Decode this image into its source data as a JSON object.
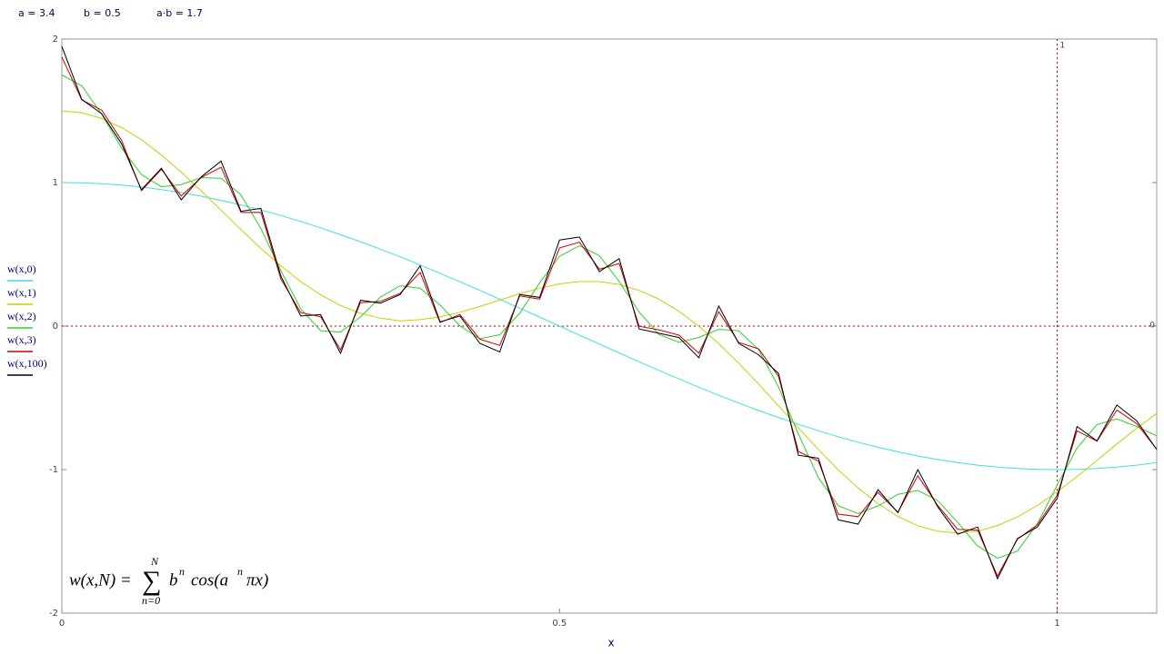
{
  "parameters": [
    "a = 3.4",
    "b = 0.5",
    "a·b = 1.7"
  ],
  "chart_data": {
    "type": "line",
    "x_label": "x",
    "x": [
      0,
      0.02,
      0.04,
      0.06,
      0.08,
      0.1,
      0.12,
      0.14,
      0.16,
      0.18,
      0.2,
      0.22,
      0.24,
      0.26,
      0.28,
      0.3,
      0.32,
      0.34,
      0.36,
      0.38,
      0.4,
      0.42,
      0.44,
      0.46,
      0.48,
      0.5,
      0.52,
      0.54,
      0.56,
      0.58,
      0.6,
      0.62,
      0.64,
      0.66,
      0.68,
      0.7,
      0.72,
      0.74,
      0.76,
      0.78,
      0.8,
      0.82,
      0.84,
      0.86,
      0.88,
      0.9,
      0.92,
      0.94,
      0.96,
      0.98,
      1,
      1.02,
      1.04,
      1.06,
      1.08,
      1.1
    ],
    "series": [
      {
        "name": "w(x,0)",
        "color": "#40dede",
        "values": [
          1,
          0.998,
          0.992,
          0.982,
          0.969,
          0.951,
          0.93,
          0.905,
          0.876,
          0.844,
          0.809,
          0.771,
          0.729,
          0.685,
          0.637,
          0.588,
          0.536,
          0.482,
          0.426,
          0.368,
          0.309,
          0.249,
          0.187,
          0.125,
          0.063,
          0,
          -0.063,
          -0.125,
          -0.187,
          -0.249,
          -0.309,
          -0.368,
          -0.426,
          -0.482,
          -0.536,
          -0.588,
          -0.637,
          -0.685,
          -0.729,
          -0.771,
          -0.809,
          -0.844,
          -0.876,
          -0.905,
          -0.93,
          -0.951,
          -0.969,
          -0.982,
          -0.992,
          -0.998,
          -1,
          -0.998,
          -0.992,
          -0.982,
          -0.969,
          -0.951
        ]
      },
      {
        "name": "w(x,1)",
        "color": "#cccc00",
        "values": [
          1.5,
          1.487,
          1.447,
          1.383,
          1.298,
          1.192,
          1.073,
          0.943,
          0.807,
          0.672,
          0.541,
          0.42,
          0.31,
          0.218,
          0.143,
          0.089,
          0.055,
          0.037,
          0.045,
          0.064,
          0.096,
          0.137,
          0.181,
          0.225,
          0.264,
          0.294,
          0.31,
          0.31,
          0.29,
          0.249,
          0.187,
          0.103,
          -0.001,
          -0.122,
          -0.258,
          -0.404,
          -0.556,
          -0.71,
          -0.859,
          -1.001,
          -1.128,
          -1.237,
          -1.326,
          -1.391,
          -1.43,
          -1.442,
          -1.429,
          -1.39,
          -1.33,
          -1.25,
          -1.155,
          -1.048,
          -0.936,
          -0.821,
          -0.712,
          -0.608
        ]
      },
      {
        "name": "w(x,2)",
        "color": "#33cc33",
        "values": [
          1.75,
          1.674,
          1.477,
          1.24,
          1.055,
          0.971,
          0.986,
          1.034,
          1.03,
          0.914,
          0.68,
          0.386,
          0.12,
          -0.032,
          -0.041,
          0.064,
          0.202,
          0.281,
          0.263,
          0.147,
          0.001,
          -0.088,
          -0.06,
          0.089,
          0.302,
          0.487,
          0.56,
          0.491,
          0.311,
          0.099,
          -0.058,
          -0.113,
          -0.079,
          -0.023,
          -0.032,
          -0.164,
          -0.424,
          -0.753,
          -1.055,
          -1.251,
          -1.306,
          -1.253,
          -1.172,
          -1.145,
          -1.216,
          -1.368,
          -1.532,
          -1.618,
          -1.568,
          -1.378,
          -1.108,
          -0.85,
          -0.686,
          -0.646,
          -0.7,
          -0.765
        ]
      },
      {
        "name": "w(x,3)",
        "color": "#cc0000",
        "values": [
          1.875,
          1.576,
          1.505,
          1.294,
          0.943,
          1.093,
          0.907,
          1.035,
          1.107,
          0.792,
          0.793,
          0.33,
          0.094,
          0.065,
          -0.166,
          0.163,
          0.172,
          0.229,
          0.374,
          0.025,
          0.081,
          -0.091,
          -0.135,
          0.21,
          0.188,
          0.545,
          0.584,
          0.396,
          0.436,
          -0.001,
          -0.026,
          -0.063,
          -0.189,
          0.1,
          -0.114,
          -0.159,
          -0.35,
          -0.874,
          -0.94,
          -1.31,
          -1.328,
          -1.159,
          -1.297,
          -1.043,
          -1.25,
          -1.416,
          -1.422,
          -1.741,
          -1.485,
          -1.385,
          -1.18,
          -0.73,
          -0.802,
          -0.585,
          -0.68,
          -0.858
        ]
      },
      {
        "name": "w(x,100)",
        "color": "#000000",
        "values": [
          1.95,
          1.58,
          1.48,
          1.27,
          0.95,
          1.1,
          0.88,
          1.04,
          1.15,
          0.8,
          0.82,
          0.35,
          0.07,
          0.08,
          -0.19,
          0.18,
          0.16,
          0.22,
          0.42,
          0.03,
          0.07,
          -0.12,
          -0.18,
          0.22,
          0.2,
          0.6,
          0.62,
          0.38,
          0.47,
          -0.02,
          -0.05,
          -0.08,
          -0.22,
          0.14,
          -0.12,
          -0.2,
          -0.33,
          -0.9,
          -0.92,
          -1.35,
          -1.38,
          -1.14,
          -1.3,
          -1,
          -1.26,
          -1.45,
          -1.4,
          -1.76,
          -1.48,
          -1.4,
          -1.2,
          -0.7,
          -0.8,
          -0.55,
          -0.66,
          -0.86
        ]
      }
    ],
    "xlim": [
      0,
      1.1
    ],
    "xticks": [
      0,
      0.5,
      1
    ],
    "ylim": [
      -2,
      2
    ],
    "yticks": [
      2,
      1,
      0,
      -1,
      -2
    ],
    "x_marker": 1,
    "y_marker": 0,
    "marker_color": "#b00000",
    "formula": {
      "lhs": "w(x,N) =",
      "sigma": "∑",
      "upper": "N",
      "lower": "n=0",
      "term1": "b",
      "sup1": "n",
      "term2": "cos(a",
      "sup2": "n",
      "term3": "πx)"
    }
  }
}
